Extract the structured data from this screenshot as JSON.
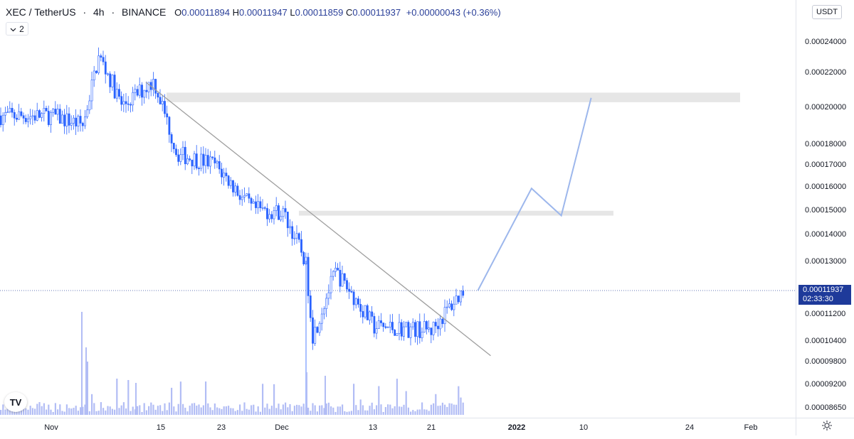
{
  "legend": {
    "symbol": "XEC / TetherUS",
    "interval": "4h",
    "exchange": "BINANCE",
    "open_label": "O",
    "open": "0.00011894",
    "high_label": "H",
    "high": "0.00011947",
    "low_label": "L",
    "low": "0.00011859",
    "close_label": "C",
    "close": "0.00011937",
    "change": "+0.00000043 (+0.36%)"
  },
  "indicators_toggle": {
    "count": "2",
    "icon": "chevron-down-icon"
  },
  "currency_button": {
    "label": "USDT"
  },
  "last_price": {
    "price": "0.00011937",
    "countdown": "02:33:30"
  },
  "price_scale_labels": [
    "0.00024000",
    "0.00022000",
    "0.00020000",
    "0.00018000",
    "0.00017000",
    "0.00016000",
    "0.00015000",
    "0.00014000",
    "0.00013000",
    "0.00011200",
    "0.00010400",
    "0.00009800",
    "0.00009200",
    "0.00008650"
  ],
  "time_scale_labels": [
    "Nov",
    "15",
    "23",
    "Dec",
    "13",
    "21",
    "2022",
    "10",
    "24",
    "Feb"
  ],
  "logo": {
    "text": "TV",
    "icon": "tradingview-logo-icon"
  },
  "settings_icon": "gear-icon",
  "colors": {
    "candle": "#2962ff",
    "volume": "#b2bdf5",
    "trendline": "#9e9e9e",
    "zone": "#e6e6e6",
    "projection": "#9db7ec",
    "price_tag": "#1e3a9a"
  },
  "chart_data": {
    "type": "candlestick",
    "symbol": "XEC/USDT",
    "timeframe": "4h",
    "x_range": [
      "Nov",
      "Feb"
    ],
    "y_range": [
      8.65e-05,
      0.00025
    ],
    "price_path": [
      {
        "date": "Nov 1",
        "price": 0.000195
      },
      {
        "date": "Nov 5",
        "price": 0.00019
      },
      {
        "date": "Nov 7",
        "price": 0.00023
      },
      {
        "date": "Nov 10",
        "price": 0.0002
      },
      {
        "date": "Nov 14",
        "price": 0.000215
      },
      {
        "date": "Nov 17",
        "price": 0.000175
      },
      {
        "date": "Nov 22",
        "price": 0.00017
      },
      {
        "date": "Nov 27",
        "price": 0.00015
      },
      {
        "date": "Dec 1",
        "price": 0.000149
      },
      {
        "date": "Dec 4",
        "price": 0.00013
      },
      {
        "date": "Dec 5",
        "price": 0.000105
      },
      {
        "date": "Dec 8",
        "price": 0.000126
      },
      {
        "date": "Dec 13",
        "price": 0.000108
      },
      {
        "date": "Dec 21",
        "price": 0.000107
      },
      {
        "date": "Dec 25",
        "price": 0.0001194
      }
    ],
    "drawings": {
      "trendline": {
        "from": {
          "date": "Nov 14",
          "price": 0.000214
        },
        "to": {
          "date": "Dec 27",
          "price": 9.95e-05
        }
      },
      "resistance_zone_upper": {
        "price_low": 0.0002025,
        "price_high": 0.000208
      },
      "resistance_zone_lower": {
        "price_low": 0.0001475,
        "price_high": 0.0001495
      },
      "projection_path": [
        {
          "date": "Dec 27",
          "price": 0.0001194
        },
        {
          "date": "Jan 3",
          "price": 0.000159
        },
        {
          "date": "Jan 7",
          "price": 0.0001475
        },
        {
          "date": "Jan 11",
          "price": 0.000205
        }
      ]
    }
  }
}
